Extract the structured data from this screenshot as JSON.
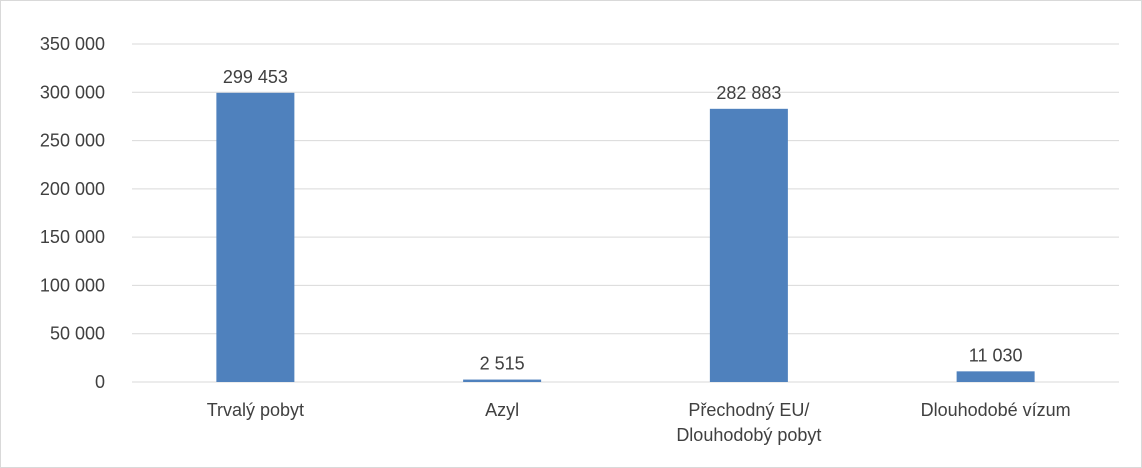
{
  "chart_data": {
    "type": "bar",
    "categories": [
      [
        "Trvalý pobyt"
      ],
      [
        "Azyl"
      ],
      [
        "Přechodný EU/",
        "Dlouhodobý pobyt"
      ],
      [
        "Dlouhodobé vízum"
      ]
    ],
    "values": [
      299453,
      2515,
      282883,
      11030
    ],
    "value_labels": [
      "299 453",
      "2 515",
      "282 883",
      "11 030"
    ],
    "ylim": [
      0,
      350000
    ],
    "yticks": [
      0,
      50000,
      100000,
      150000,
      200000,
      250000,
      300000,
      350000
    ],
    "ytick_labels": [
      "0",
      "50 000",
      "100 000",
      "150 000",
      "200 000",
      "250 000",
      "300 000",
      "350 000"
    ],
    "bar_color": "#4f81bd",
    "grid": true,
    "legend": "none"
  }
}
